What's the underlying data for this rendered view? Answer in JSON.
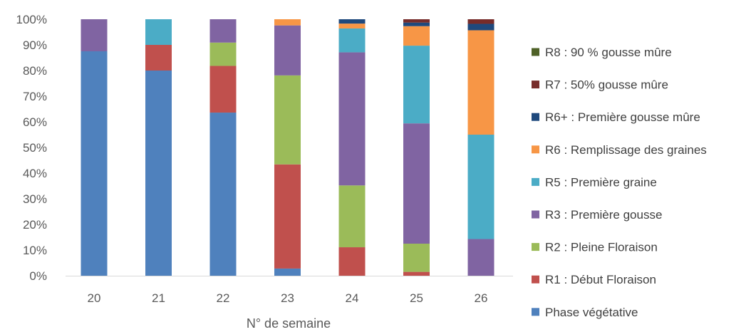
{
  "chart_data": {
    "type": "bar",
    "stacked": true,
    "normalized": true,
    "xlabel": "N° de semaine",
    "ylabel": "",
    "ylim": [
      0,
      100
    ],
    "yticks": [
      "0%",
      "10%",
      "20%",
      "30%",
      "40%",
      "50%",
      "60%",
      "70%",
      "80%",
      "90%",
      "100%"
    ],
    "categories": [
      "20",
      "21",
      "22",
      "23",
      "24",
      "25",
      "26"
    ],
    "legend_position": "right",
    "grid": false,
    "series": [
      {
        "name": "Phase végétative",
        "color": "#4f81bd",
        "values": [
          87.5,
          80,
          63.6,
          2.8,
          0,
          0,
          0
        ]
      },
      {
        "name": "R1 : Début Floraison",
        "color": "#c0504d",
        "values": [
          0,
          10,
          18.2,
          40.6,
          11.1,
          1.5,
          0
        ]
      },
      {
        "name": "R2 : Pleine Floraison",
        "color": "#9bbb59",
        "values": [
          0,
          0,
          9.1,
          34.7,
          24.1,
          11.0,
          0
        ]
      },
      {
        "name": "R3 : Première gousse",
        "color": "#8064a2",
        "values": [
          12.5,
          0,
          9.1,
          19.5,
          51.9,
          46.9,
          14.3
        ]
      },
      {
        "name": "R5 : Première graine",
        "color": "#4bacc6",
        "values": [
          0,
          10,
          0,
          0,
          9.3,
          30.3,
          40.7
        ]
      },
      {
        "name": "R6 : Remplissage des graines",
        "color": "#f79646",
        "values": [
          0,
          0,
          0,
          2.4,
          1.9,
          7.6,
          40.7
        ]
      },
      {
        "name": "R6+ : Première gousse mûre",
        "color": "#1f497d",
        "values": [
          0,
          0,
          0,
          0,
          1.7,
          1.4,
          2.5
        ]
      },
      {
        "name": "R7 : 50% gousse mûre",
        "color": "#772c2a",
        "values": [
          0,
          0,
          0,
          0,
          0,
          1.3,
          1.8
        ]
      },
      {
        "name": "R8 : 90 % gousse mûre",
        "color": "#4f6228",
        "values": [
          0,
          0,
          0,
          0,
          0,
          0,
          0
        ]
      }
    ]
  }
}
